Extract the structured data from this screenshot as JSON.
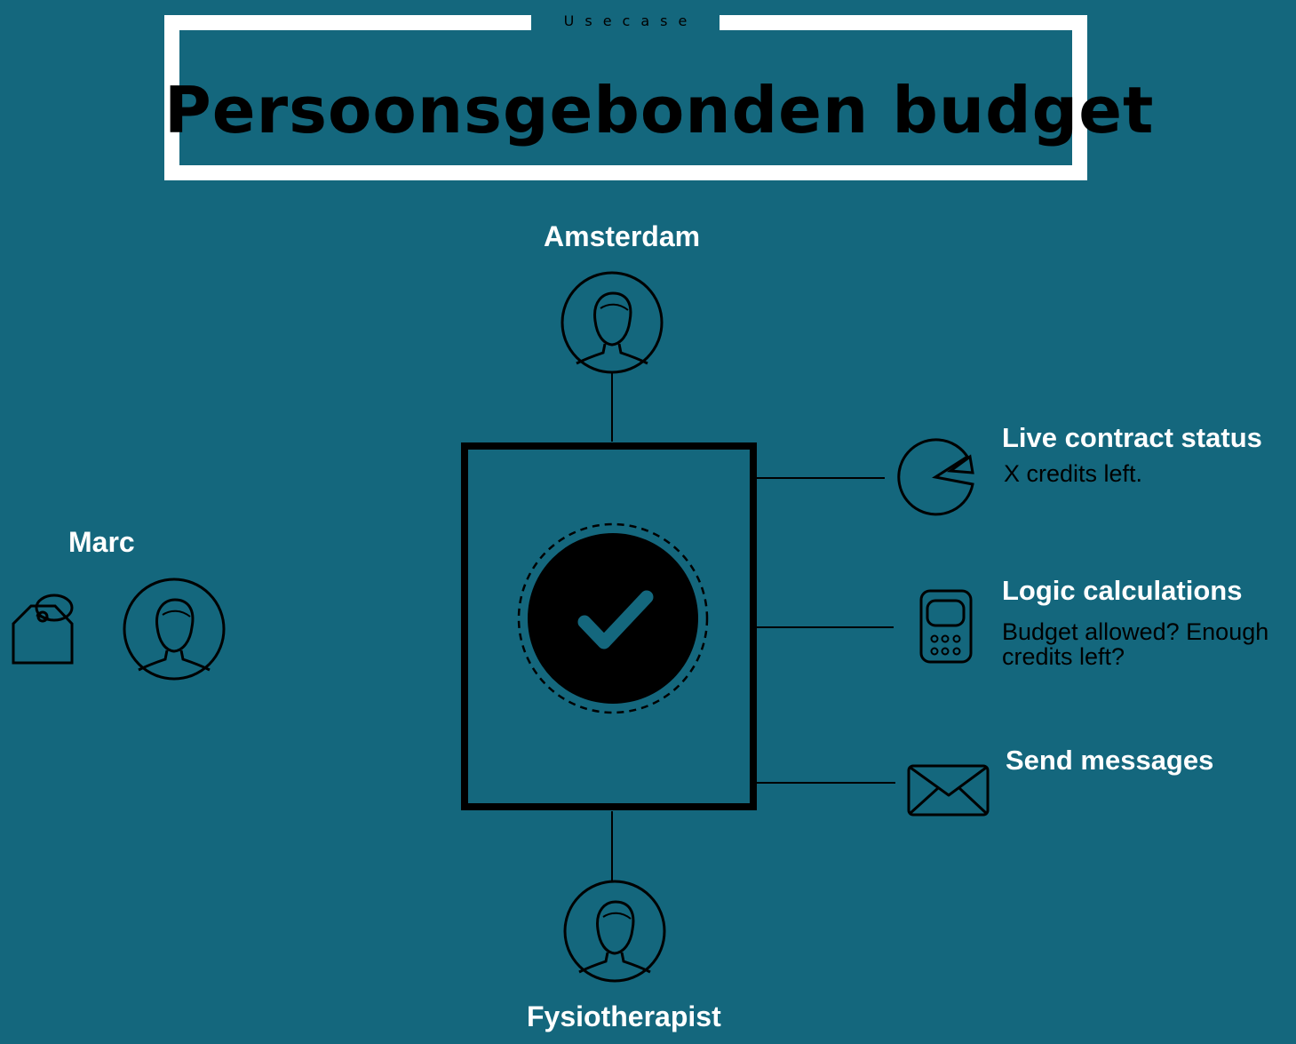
{
  "header": {
    "overline": "Usecase",
    "title": "Persoonsgebonden budget"
  },
  "actors": {
    "top": "Amsterdam",
    "left": "Marc",
    "bottom": "Fysiotherapist"
  },
  "features": [
    {
      "title": "Live contract status",
      "subtitle": "X credits left.",
      "icon": "pie-chart-icon"
    },
    {
      "title": "Logic calculations",
      "subtitle": "Budget allowed? Enough credits left?",
      "icon": "calculator-icon"
    },
    {
      "title": "Send messages",
      "subtitle": "",
      "icon": "envelope-icon"
    }
  ],
  "colors": {
    "background": "#14677D",
    "frame": "#FFFFFF",
    "ink": "#000000",
    "label": "#FFFFFF"
  }
}
